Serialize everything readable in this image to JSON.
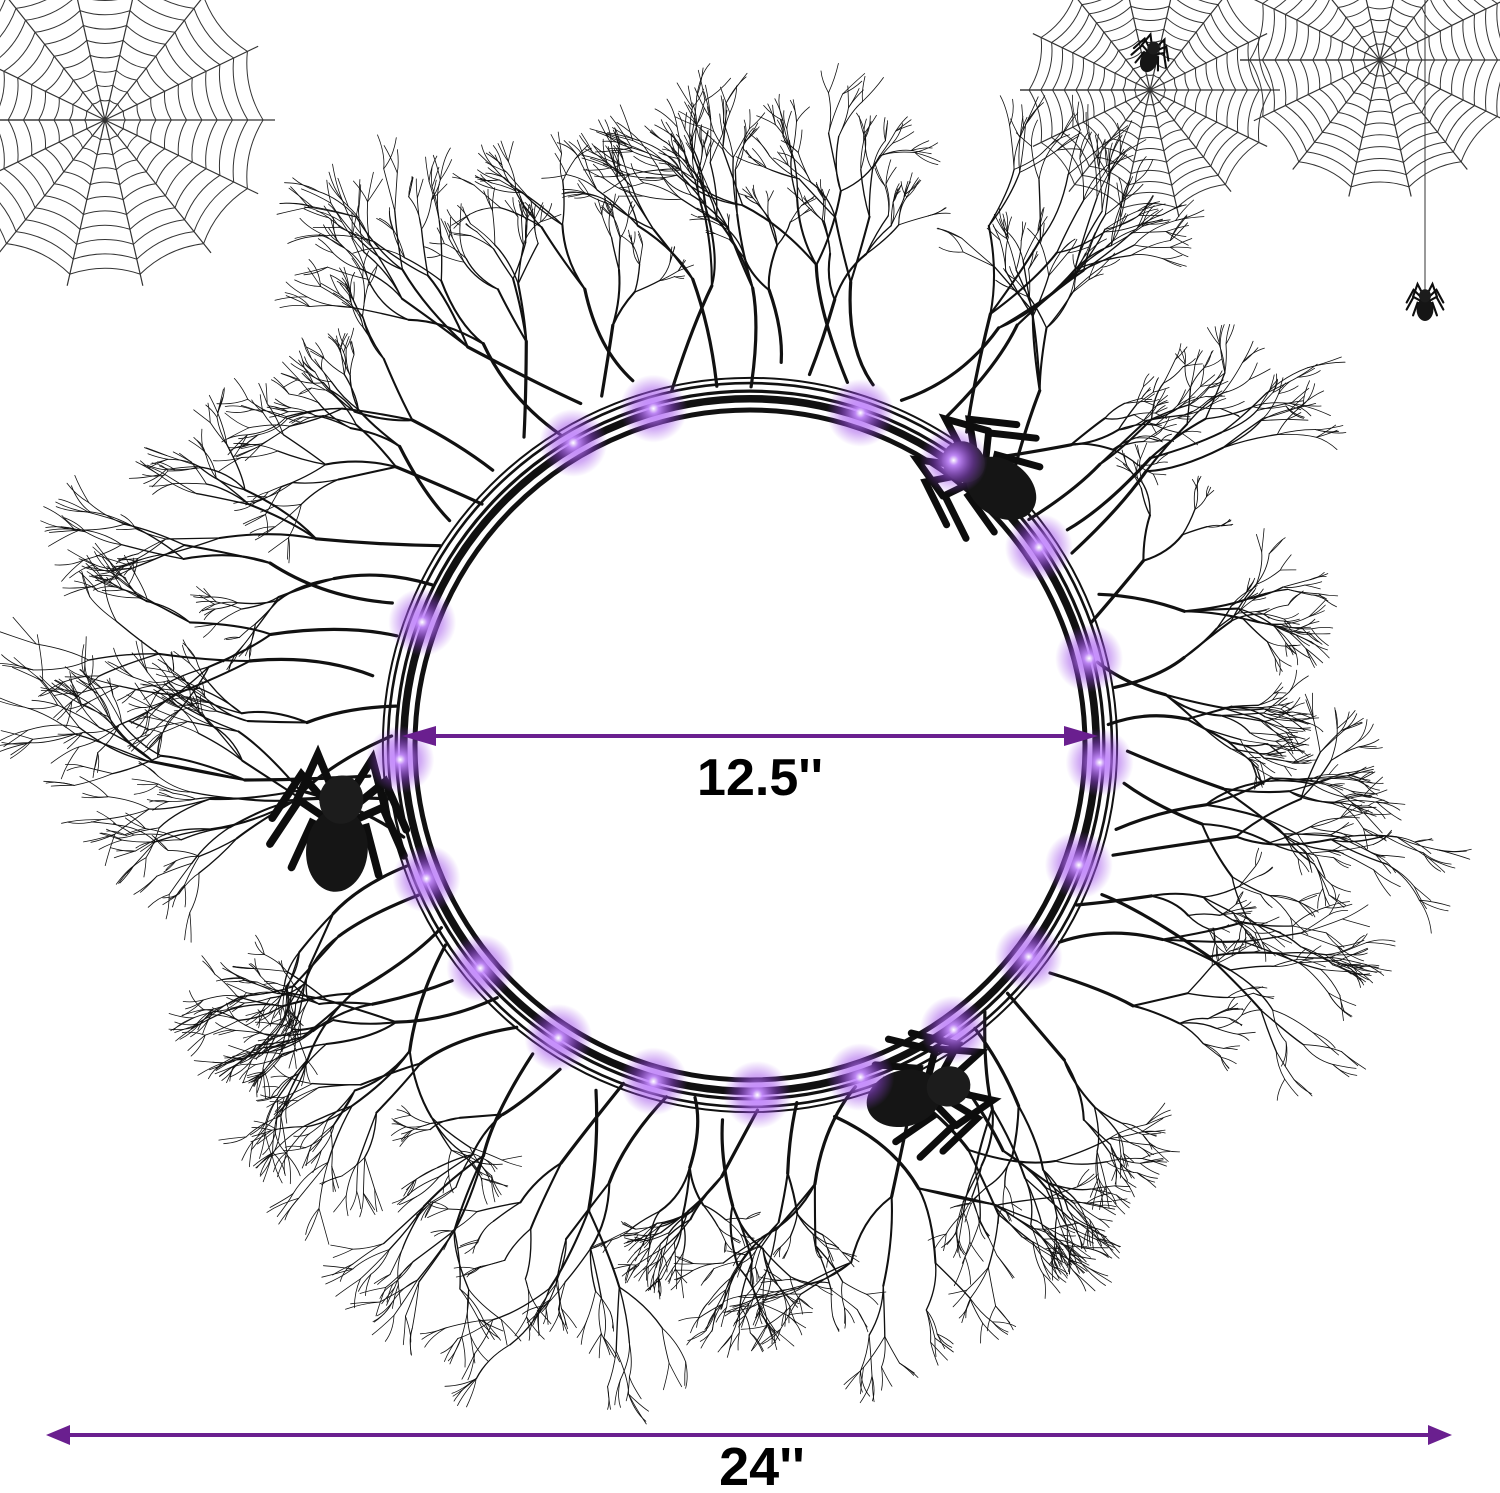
{
  "product": {
    "inner_diameter_label": "12.5''",
    "outer_diameter_label": "24''"
  },
  "colors": {
    "arrow": "#6a1f8f",
    "branch": "#111111",
    "light_glow": "#a24df0",
    "web": "#333333"
  },
  "lights_count": 18,
  "spiders_on_wreath": 3,
  "icons": [
    "cobweb-icon",
    "spider-icon",
    "wreath-image"
  ]
}
